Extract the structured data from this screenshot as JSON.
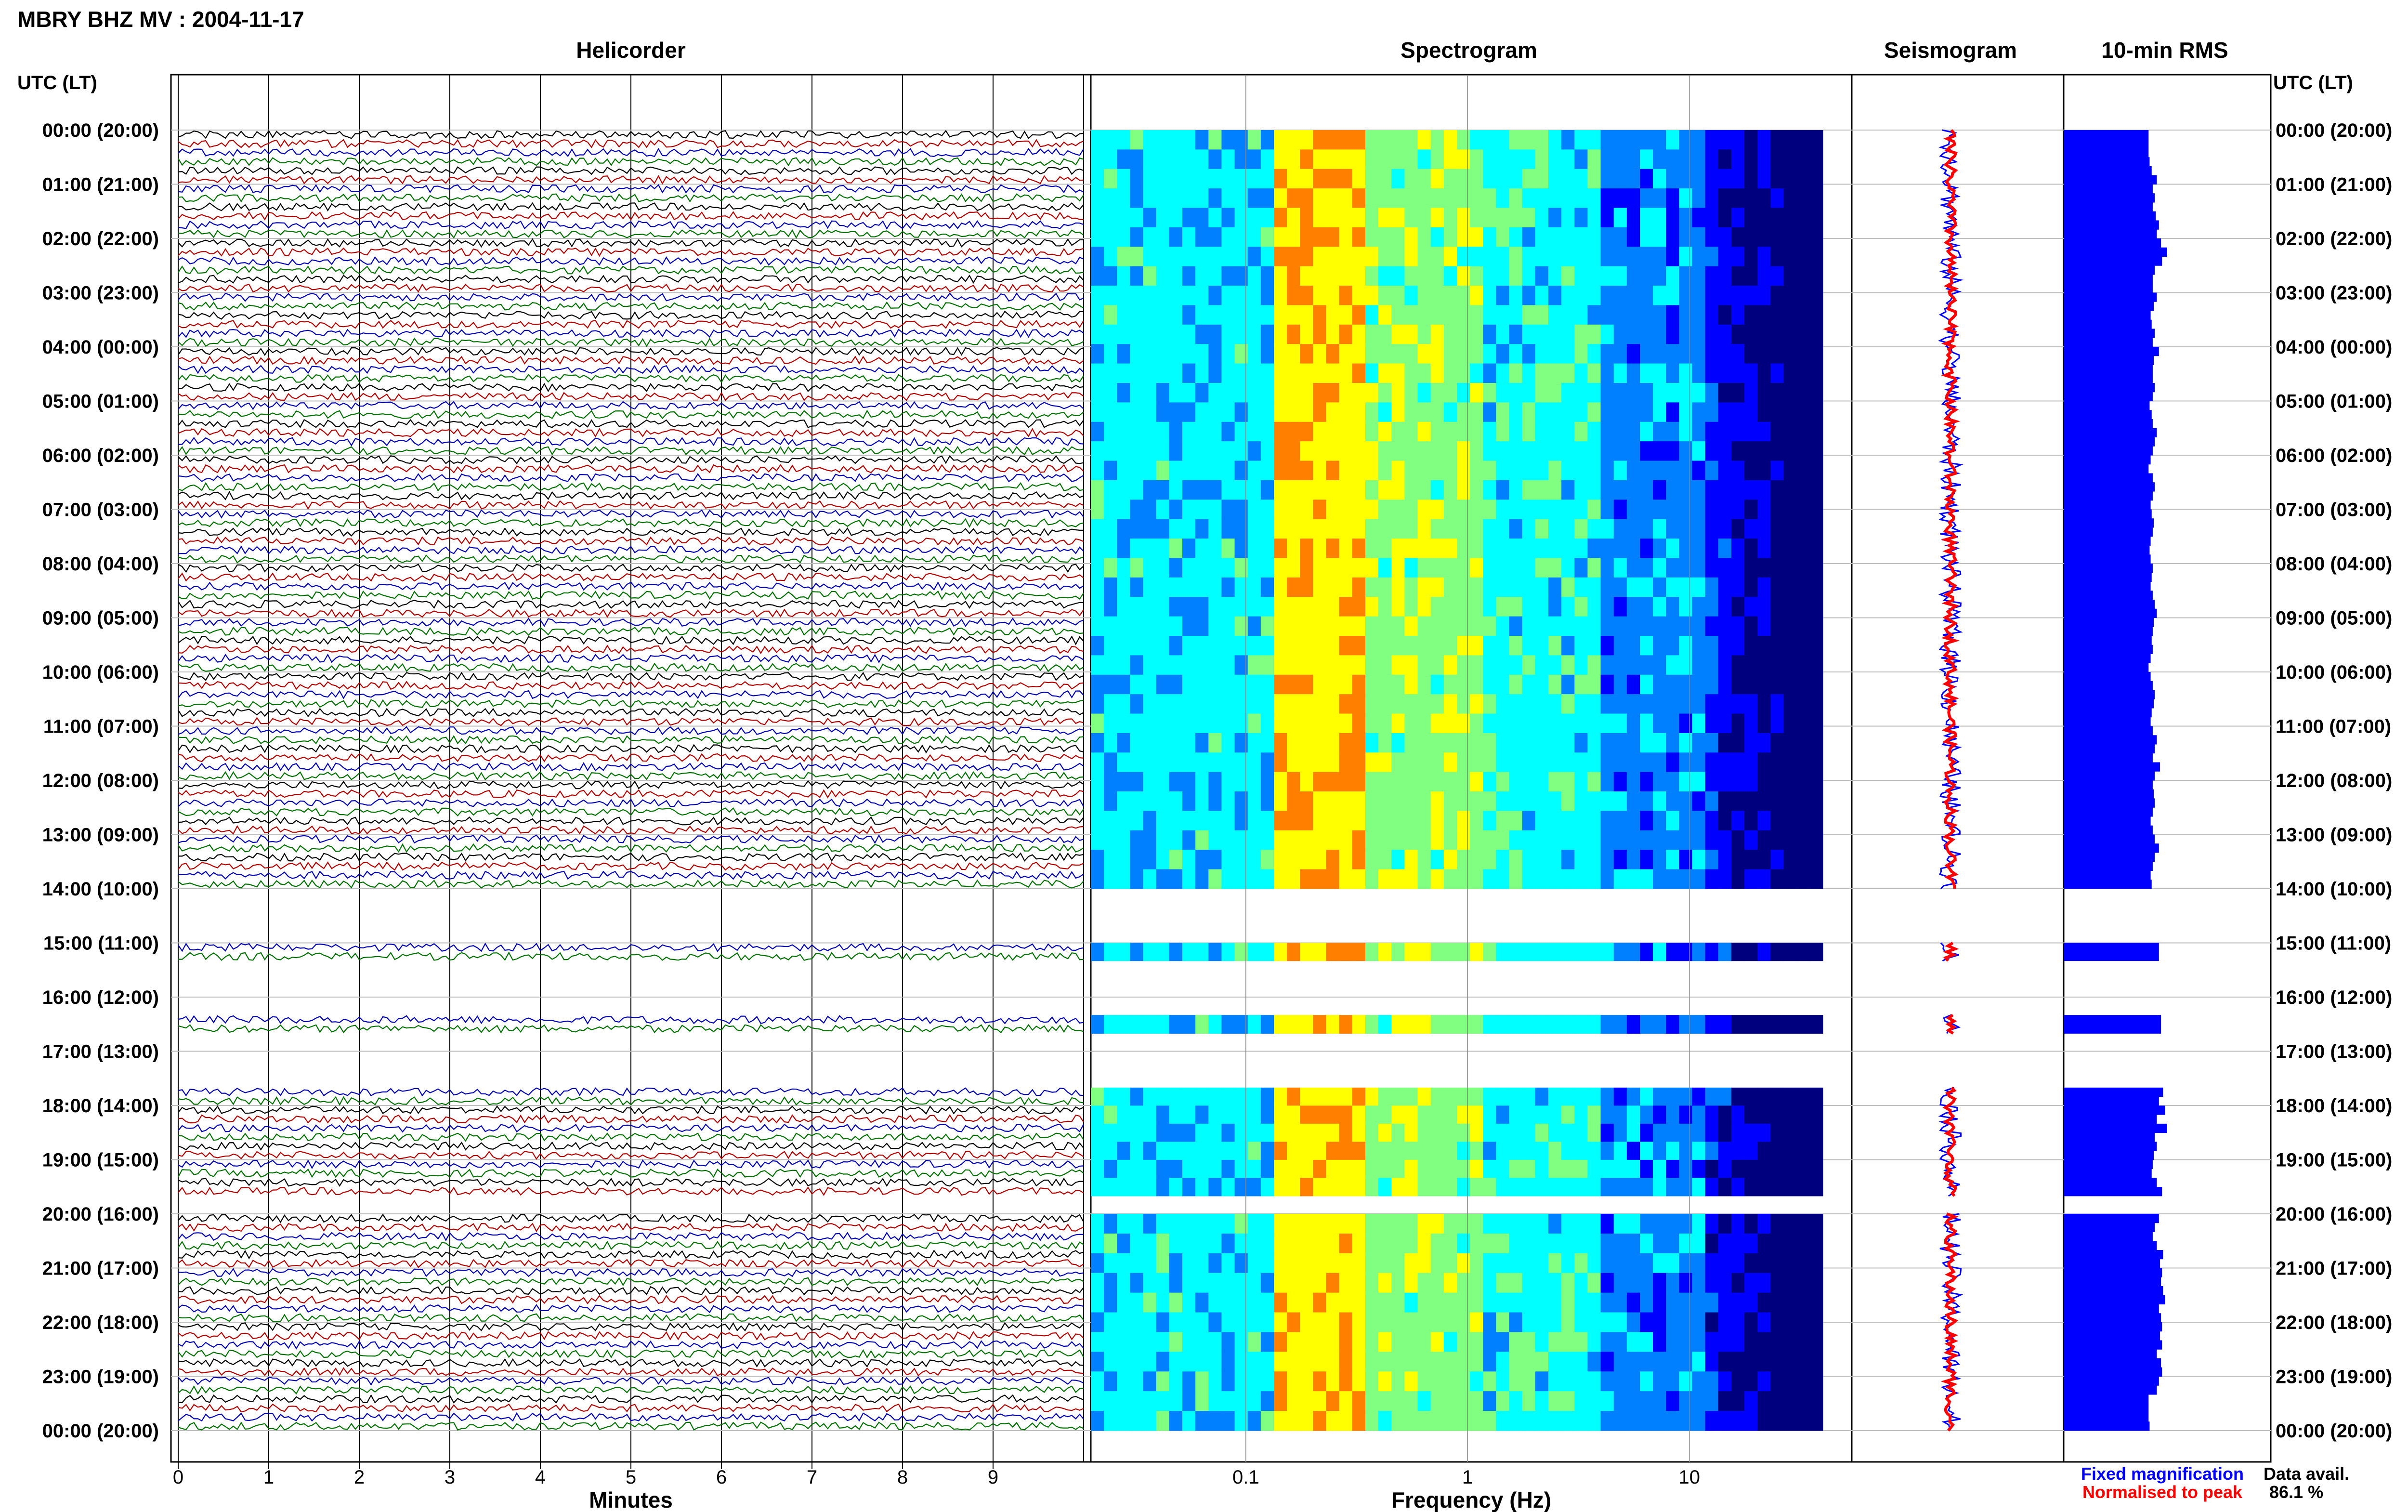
{
  "title": "MBRY BHZ MV : 2004-11-17",
  "panels": {
    "helicorder": "Helicorder",
    "spectrogram": "Spectrogram",
    "seismogram": "Seismogram",
    "rms": "10-min RMS"
  },
  "axis_labels": {
    "left_header": "UTC (LT)",
    "right_header": "UTC (LT)",
    "minutes": "Minutes",
    "frequency": "Frequency (Hz)"
  },
  "time_labels": [
    "00:00 (20:00)",
    "01:00 (21:00)",
    "02:00 (22:00)",
    "03:00 (23:00)",
    "04:00 (00:00)",
    "05:00 (01:00)",
    "06:00 (02:00)",
    "07:00 (03:00)",
    "08:00 (04:00)",
    "09:00 (05:00)",
    "10:00 (06:00)",
    "11:00 (07:00)",
    "12:00 (08:00)",
    "13:00 (09:00)",
    "14:00 (10:00)",
    "15:00 (11:00)",
    "16:00 (12:00)",
    "17:00 (13:00)",
    "18:00 (14:00)",
    "19:00 (15:00)",
    "20:00 (16:00)",
    "21:00 (17:00)",
    "22:00 (18:00)",
    "23:00 (19:00)",
    "00:00 (20:00)"
  ],
  "minute_ticks": [
    "0",
    "1",
    "2",
    "3",
    "4",
    "5",
    "6",
    "7",
    "8",
    "9"
  ],
  "frequency_ticks": [
    "0.1",
    "1",
    "10"
  ],
  "legend": {
    "fixed": "Fixed magnification",
    "normalised": "Normalised to peak",
    "fixed_color": "#0000ff",
    "normalised_color": "#ff0000"
  },
  "data_avail": {
    "label": "Data avail.",
    "value": "86.1 %"
  },
  "chart_data": {
    "type": "heatmap",
    "x_minutes_range": [
      0,
      10
    ],
    "frequency_range_hz": [
      0.02,
      40
    ],
    "frequency_scale": "log",
    "time_range_utc_hours": [
      0,
      24
    ],
    "data_segments_utc_hours": [
      [
        0,
        14
      ],
      [
        15,
        15.33
      ],
      [
        16.33,
        16.67
      ],
      [
        17.67,
        19.67
      ],
      [
        20,
        24
      ]
    ],
    "trace_colors": [
      "#000000",
      "#b00000",
      "#0000b0",
      "#007000"
    ],
    "spectrogram_colormap": [
      "#00007f",
      "#0000ff",
      "#0080ff",
      "#00ffff",
      "#80ff80",
      "#ffff00",
      "#ff8000",
      "#ff0000"
    ],
    "rms_color": "#0000ff",
    "rms_relative_values": [
      0.82,
      0.82,
      0.82,
      0.83,
      0.85,
      0.9,
      0.86,
      0.88,
      0.86,
      0.89,
      0.92,
      0.9,
      0.94,
      1.0,
      0.95,
      0.88,
      0.86,
      0.86,
      0.9,
      0.87,
      0.84,
      0.85,
      0.88,
      0.86,
      0.92,
      0.87,
      0.86,
      0.86,
      0.88,
      0.86,
      0.83,
      0.85,
      0.86,
      0.9,
      0.88,
      0.86,
      0.84,
      0.82,
      0.86,
      0.88,
      0.86,
      0.84,
      0.85,
      0.87,
      0.86,
      0.84,
      0.83,
      0.84,
      0.86,
      0.85,
      0.84,
      0.86,
      0.88,
      0.9,
      0.87,
      0.86,
      0.85,
      0.86,
      0.84,
      0.82,
      0.84,
      0.86,
      0.88,
      0.87,
      0.85,
      0.84,
      0.86,
      0.9,
      0.88,
      0.86,
      0.93,
      0.88,
      0.86,
      0.87,
      0.88,
      0.86,
      0.84,
      0.86,
      0.88,
      0.92,
      0.88,
      0.86,
      0.84,
      0.85,
      0.92,
      0.92,
      0.94,
      0.94,
      0.96,
      0.92,
      0.98,
      0.9,
      1.0,
      0.88,
      0.9,
      0.87,
      0.86,
      0.85,
      0.9,
      0.95,
      0.92,
      0.88,
      0.86,
      0.9,
      0.96,
      0.93,
      0.95,
      0.94,
      0.96,
      0.98,
      0.92,
      0.94,
      0.95,
      0.93,
      0.95,
      0.9,
      0.94,
      0.95,
      0.92,
      0.9
    ]
  }
}
